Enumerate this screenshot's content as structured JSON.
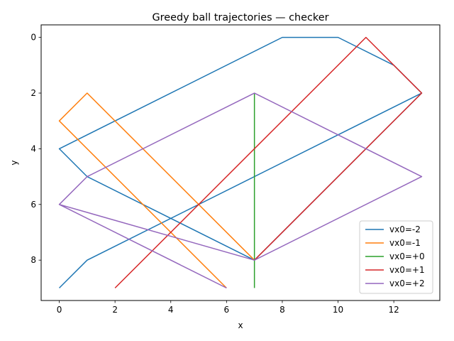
{
  "chart_data": {
    "type": "line",
    "title": "Greedy ball trajectories — checker",
    "xlabel": "x",
    "ylabel": "y",
    "xlim": [
      -0.65,
      13.65
    ],
    "ylim": [
      9.45,
      -0.45
    ],
    "y_inverted": true,
    "xticks": [
      0,
      2,
      4,
      6,
      8,
      10,
      12
    ],
    "yticks": [
      0,
      2,
      4,
      6,
      8
    ],
    "grid": false,
    "legend_position": "lower-right",
    "series": [
      {
        "name": "vx0=-2",
        "color": "#1f77b4",
        "x": [
          0,
          1,
          13,
          12,
          10,
          8,
          0,
          1,
          7,
          13
        ],
        "y": [
          9,
          8,
          2,
          1,
          0,
          0,
          4,
          5,
          8,
          2
        ]
      },
      {
        "name": "vx0=-1",
        "color": "#ff7f0e",
        "x": [
          6,
          0,
          1,
          7
        ],
        "y": [
          9,
          3,
          2,
          8
        ]
      },
      {
        "name": "vx0=+0",
        "color": "#2ca02c",
        "x": [
          7,
          7
        ],
        "y": [
          9,
          2
        ]
      },
      {
        "name": "vx0=+1",
        "color": "#d62728",
        "x": [
          2,
          11,
          13,
          7,
          13
        ],
        "y": [
          9,
          0,
          2,
          8,
          2
        ]
      },
      {
        "name": "vx0=+2",
        "color": "#9467bd",
        "x": [
          6,
          0,
          1,
          7,
          13,
          7,
          0,
          1
        ],
        "y": [
          9,
          6,
          5,
          2,
          5,
          8,
          6,
          5
        ]
      }
    ]
  }
}
